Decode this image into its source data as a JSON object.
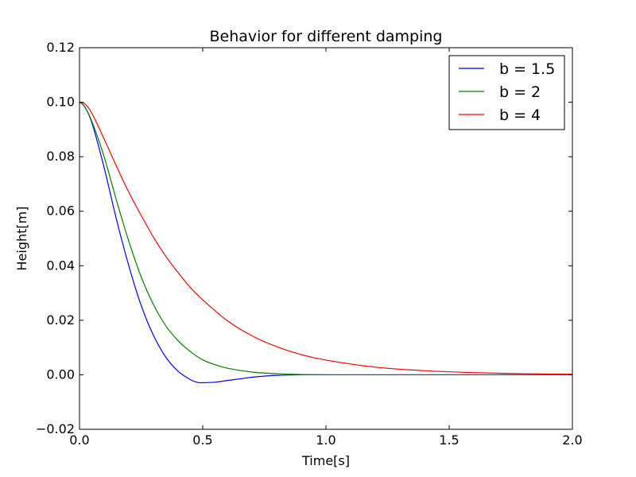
{
  "chart_data": {
    "type": "line",
    "title": "Behavior for different damping",
    "xlabel": "Time[s]",
    "ylabel": "Height[m]",
    "xlim": [
      0,
      2
    ],
    "ylim": [
      -0.02,
      0.12
    ],
    "x_ticks": [
      0,
      0.5,
      1,
      1.5,
      2
    ],
    "x_tick_labels": [
      "0.0",
      "0.5",
      "1.0",
      "1.5",
      "2.0"
    ],
    "y_ticks": [
      -0.02,
      0,
      0.02,
      0.04,
      0.06,
      0.08,
      0.1,
      0.12
    ],
    "y_tick_labels": [
      "−0.02",
      "0.00",
      "0.02",
      "0.04",
      "0.06",
      "0.08",
      "0.10",
      "0.12"
    ],
    "grid": false,
    "legend_position": "top-right",
    "series": [
      {
        "name": "b = 1.5",
        "color": "#0000ff",
        "points": [
          [
            0,
            0.1
          ],
          [
            0.02,
            0.0985
          ],
          [
            0.05,
            0.0925
          ],
          [
            0.1,
            0.076
          ],
          [
            0.15,
            0.057
          ],
          [
            0.2,
            0.04
          ],
          [
            0.25,
            0.0255
          ],
          [
            0.3,
            0.0145
          ],
          [
            0.35,
            0.0065
          ],
          [
            0.4,
            0.0013
          ],
          [
            0.45,
            -0.0018
          ],
          [
            0.48,
            -0.0028
          ],
          [
            0.5,
            -0.0029
          ],
          [
            0.55,
            -0.0027
          ],
          [
            0.6,
            -0.0021
          ],
          [
            0.65,
            -0.0015
          ],
          [
            0.7,
            -0.0009
          ],
          [
            0.75,
            -0.0005
          ],
          [
            0.8,
            -0.0002
          ],
          [
            0.9,
            0.0
          ],
          [
            1.0,
            0.0
          ],
          [
            1.2,
            0.0
          ],
          [
            1.5,
            0.0
          ],
          [
            2.0,
            0.0
          ]
        ]
      },
      {
        "name": "b = 2",
        "color": "#008000",
        "points": [
          [
            0,
            0.1
          ],
          [
            0.02,
            0.0985
          ],
          [
            0.05,
            0.093
          ],
          [
            0.1,
            0.08
          ],
          [
            0.15,
            0.064
          ],
          [
            0.2,
            0.049
          ],
          [
            0.25,
            0.036
          ],
          [
            0.3,
            0.0258
          ],
          [
            0.35,
            0.018
          ],
          [
            0.4,
            0.0125
          ],
          [
            0.45,
            0.0085
          ],
          [
            0.5,
            0.0055
          ],
          [
            0.55,
            0.0037
          ],
          [
            0.6,
            0.0024
          ],
          [
            0.7,
            0.001
          ],
          [
            0.8,
            0.0004
          ],
          [
            0.9,
            0.0001
          ],
          [
            1.0,
            0.0
          ],
          [
            1.5,
            0.0
          ],
          [
            2.0,
            0.0
          ]
        ]
      },
      {
        "name": "b = 4",
        "color": "#ff0000",
        "points": [
          [
            0,
            0.1
          ],
          [
            0.02,
            0.0995
          ],
          [
            0.05,
            0.096
          ],
          [
            0.1,
            0.0865
          ],
          [
            0.15,
            0.0765
          ],
          [
            0.2,
            0.067
          ],
          [
            0.25,
            0.0585
          ],
          [
            0.3,
            0.0505
          ],
          [
            0.35,
            0.0435
          ],
          [
            0.4,
            0.0375
          ],
          [
            0.45,
            0.032
          ],
          [
            0.5,
            0.0275
          ],
          [
            0.6,
            0.0198
          ],
          [
            0.7,
            0.0143
          ],
          [
            0.8,
            0.0103
          ],
          [
            0.9,
            0.0074
          ],
          [
            1.0,
            0.0054
          ],
          [
            1.2,
            0.0028
          ],
          [
            1.4,
            0.0015
          ],
          [
            1.6,
            0.0008
          ],
          [
            1.8,
            0.0004
          ],
          [
            2.0,
            0.0002
          ]
        ]
      }
    ]
  }
}
